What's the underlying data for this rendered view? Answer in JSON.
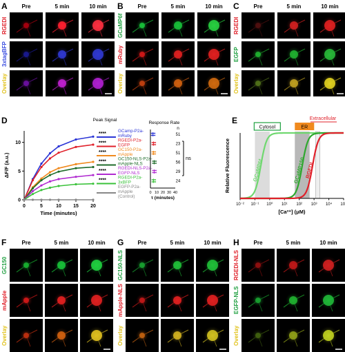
{
  "panels": {
    "A": {
      "label": "A",
      "cols": [
        "Pre",
        "5 min",
        "10 min"
      ],
      "rows": [
        "RGEDI",
        "3xtagBFP",
        "Overlay"
      ]
    },
    "B": {
      "label": "B",
      "cols": [
        "Pre",
        "5 min",
        "10 min"
      ],
      "rows": [
        "GCaMP6f",
        "mRuby",
        "Overlay"
      ]
    },
    "C": {
      "label": "C",
      "cols": [
        "Pre",
        "5 min",
        "10 min"
      ],
      "rows": [
        "RGEDI",
        "EGFP",
        "Overlay"
      ]
    },
    "D": {
      "label": "D",
      "peak_signal": "Peak Signal",
      "response_rate": "Response Rate",
      "n_label": "n",
      "stars": "****",
      "ns": "ns",
      "legend": [
        {
          "l1": "GCamp-P2a-",
          "l2": "mRuby",
          "color": "#2b35d6",
          "n": "51"
        },
        {
          "l1": "RGEDI-P2a-",
          "l2": "EGFP",
          "color": "#e0202a",
          "n": "23"
        },
        {
          "l1": "GC150-P2a-",
          "l2": "mApple",
          "color": "#f08a1e",
          "n": "51"
        },
        {
          "l1": "GC150-NLS-P2a-",
          "l2": "mApple-NLS",
          "color": "#1e6b2a",
          "n": "56"
        },
        {
          "l1": "RGEDI-NLS-P2a-",
          "l2": "EGFP-NLS",
          "color": "#b02ad0",
          "n": "29"
        },
        {
          "l1": "RGEDI-P2a-",
          "l2": "3xBFP",
          "color": "#3ac23a",
          "n": "24"
        },
        {
          "l1": "EGFP-P2a-",
          "l2": "mApple",
          "l3": "(Control)",
          "color": "#888888",
          "n": ""
        }
      ]
    },
    "E": {
      "label": "E",
      "cytosol": "Cytosol",
      "er": "ER",
      "extracellular": "Extracellular",
      "curves": [
        "GCaMP6f",
        "GCaMP150",
        "RGEDI"
      ]
    },
    "F": {
      "label": "F",
      "cols": [
        "Pre",
        "5 min",
        "10 min"
      ],
      "rows": [
        "GC150",
        "mApple",
        "Overlay"
      ]
    },
    "G": {
      "label": "G",
      "cols": [
        "Pre",
        "5 min",
        "10 min"
      ],
      "rows": [
        "GC150-NLS",
        "mApple-NLS",
        "Overlay"
      ]
    },
    "H": {
      "label": "H",
      "cols": [
        "Pre",
        "5 min",
        "10 min"
      ],
      "rows": [
        "RGEDI-NLS",
        "EGFP-NLS",
        "Overlay"
      ]
    }
  },
  "chart_data": [
    {
      "type": "line",
      "xlabel": "Time (minutes)",
      "ylabel": "ΔF/F (a.u.)",
      "x_ticks": [
        0,
        5,
        10,
        15,
        20
      ],
      "y_ticks": [
        0,
        5,
        10
      ],
      "xlim": [
        0,
        20
      ],
      "ylim": [
        0,
        12
      ],
      "x": [
        0,
        2.5,
        5,
        7.5,
        10,
        15,
        20
      ],
      "series": [
        {
          "name": "GCamp-P2a-mRuby",
          "color": "#2b35d6",
          "values": [
            0,
            3.6,
            6.3,
            8.1,
            9.3,
            10.5,
            11.0
          ]
        },
        {
          "name": "RGEDI-P2a-EGFP",
          "color": "#e0202a",
          "values": [
            0,
            3.4,
            5.7,
            7.2,
            8.2,
            9.2,
            9.6
          ]
        },
        {
          "name": "GC150-P2a-mApple",
          "color": "#f08a1e",
          "values": [
            0,
            2.2,
            3.7,
            4.8,
            5.5,
            6.2,
            6.6
          ]
        },
        {
          "name": "GC150-NLS-P2a-mApple-NLS",
          "color": "#1e6b2a",
          "values": [
            0,
            2.0,
            3.4,
            4.3,
            4.9,
            5.5,
            5.7
          ]
        },
        {
          "name": "RGEDI-NLS-P2a-EGFP-NLS",
          "color": "#b02ad0",
          "values": [
            0,
            1.5,
            2.5,
            3.2,
            3.6,
            4.0,
            4.3
          ]
        },
        {
          "name": "RGEDI-P2a-3xBFP",
          "color": "#3ac23a",
          "values": [
            0,
            1.0,
            1.7,
            2.1,
            2.4,
            2.7,
            2.8
          ]
        },
        {
          "name": "EGFP-P2a-mApple (Control)",
          "color": "#888888",
          "values": [
            0,
            0,
            0,
            0,
            0,
            0,
            0
          ]
        }
      ]
    },
    {
      "type": "scatter",
      "xlabel": "τ (minutes)",
      "x_ticks": [
        0,
        10,
        20,
        30,
        40
      ],
      "xlim": [
        0,
        40
      ],
      "series": [
        {
          "name": "GCamp-P2a-mRuby",
          "color": "#2b35d6",
          "mean": 4
        },
        {
          "name": "RGEDI-P2a-EGFP",
          "color": "#e0202a",
          "mean": 5
        },
        {
          "name": "GC150-P2a-mApple",
          "color": "#f08a1e",
          "mean": 5
        },
        {
          "name": "GC150-NLS-P2a-mApple-NLS",
          "color": "#1e6b2a",
          "mean": 6
        },
        {
          "name": "RGEDI-NLS-P2a-EGFP-NLS",
          "color": "#b02ad0",
          "mean": 6
        },
        {
          "name": "RGEDI-P2a-3xBFP",
          "color": "#3ac23a",
          "mean": 5
        }
      ]
    },
    {
      "type": "line",
      "xlabel": "[Ca²⁺] (μM)",
      "ylabel": "Relative Fluorescence",
      "x_scale": "log",
      "x_ticks": [
        "10⁻²",
        "10⁻¹",
        "10⁰",
        "10¹",
        "10²",
        "10³",
        "10⁴",
        "10⁵"
      ],
      "xlim_log10": [
        -2,
        5
      ],
      "ylim": [
        0,
        1
      ],
      "series": [
        {
          "name": "GCaMP6f",
          "color": "#6fd86f",
          "kd_log10": -0.6
        },
        {
          "name": "GCaMP150",
          "color": "#2ea82e",
          "kd_log10": 2.2
        },
        {
          "name": "RGEDI",
          "color": "#e0202a",
          "kd_log10": 2.9
        }
      ]
    }
  ]
}
